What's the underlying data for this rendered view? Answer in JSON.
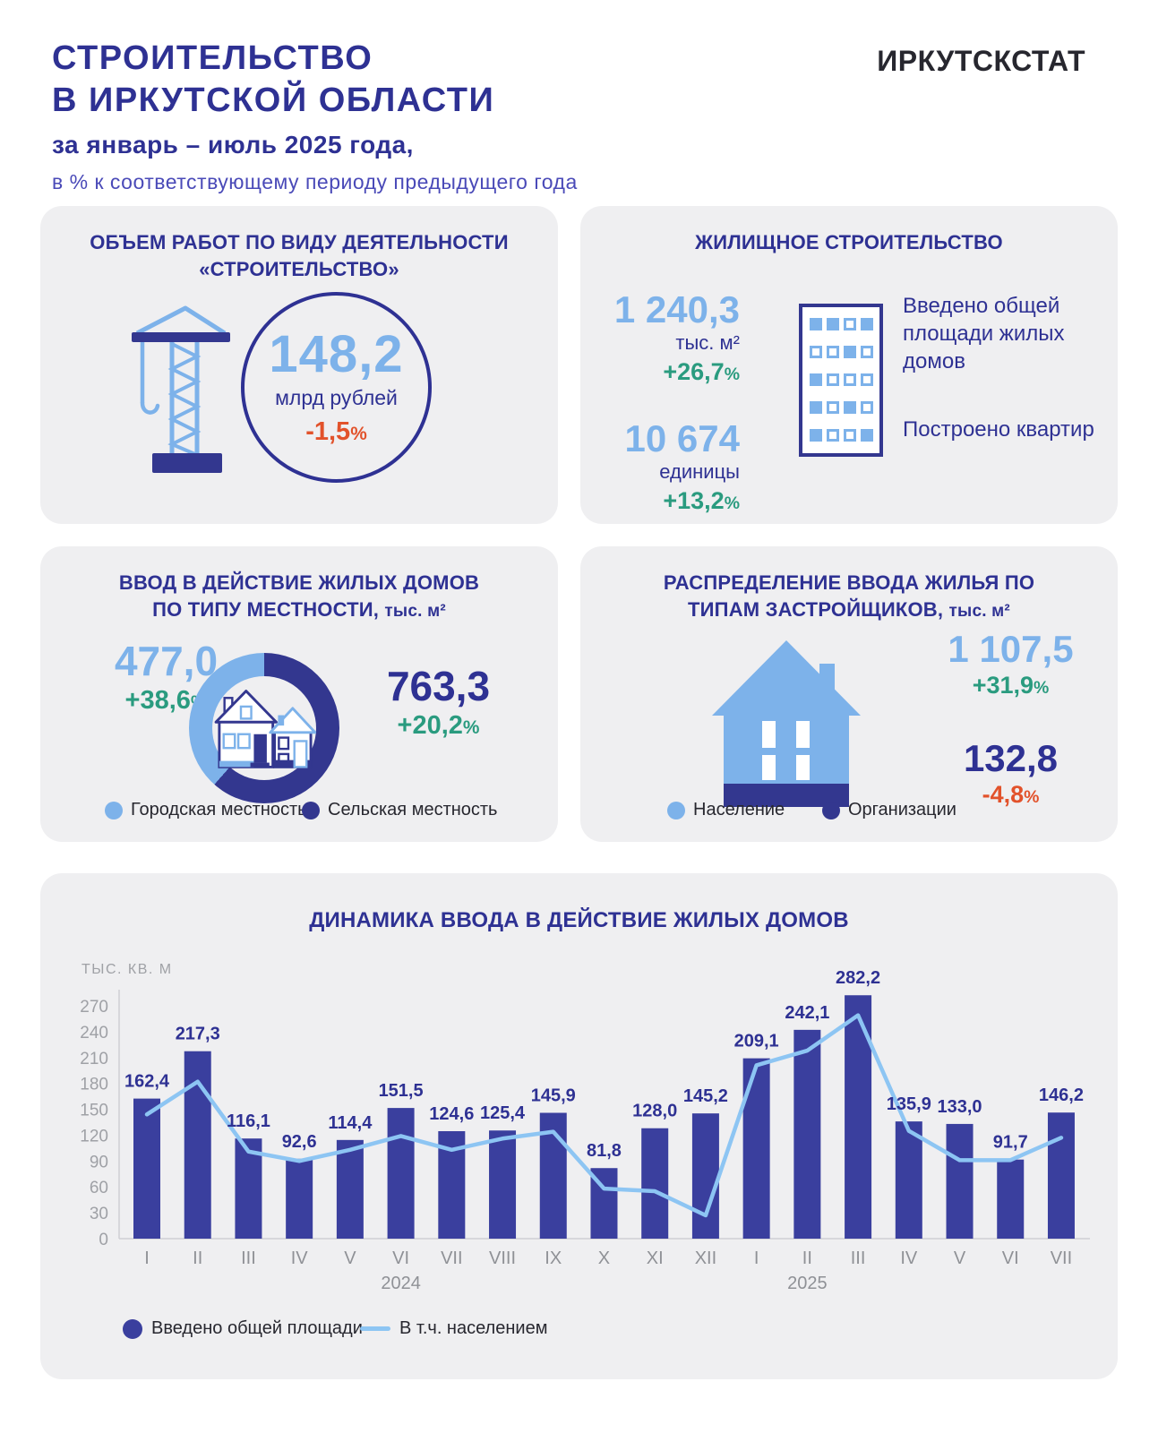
{
  "colors": {
    "navy": "#2e3193",
    "indigo": "#3a3f9e",
    "donut_dark": "#33378f",
    "light_blue": "#7db2ea",
    "line_blue": "#8dc5f3",
    "green": "#2a9b7f",
    "orange": "#e2522b",
    "violet": "#4a4ab8",
    "panel_bg": "#efeff1",
    "axis_gray": "#9fa1a6",
    "label_gray": "#8f9196",
    "ink": "#27272f",
    "black": "#141414"
  },
  "header": {
    "title_line1": "СТРОИТЕЛЬСТВО",
    "title_line2": "В ИРКУТСКОЙ ОБЛАСТИ",
    "period": "за январь – июль 2025 года,",
    "subtitle": "в % к соответствующему периоду предыдущего года",
    "logo": "ИРКУТСКСТАТ"
  },
  "panels": {
    "volume": {
      "title_line1": "ОБЪЕМ РАБОТ ПО ВИДУ ДЕЯТЕЛЬНОСТИ",
      "title_line2": "«СТРОИТЕЛЬСТВО»",
      "value": "148,2",
      "unit": "млрд рублей",
      "change": "-1,5%"
    },
    "housing": {
      "title": "ЖИЛИЩНОЕ СТРОИТЕЛЬСТВО",
      "area": {
        "value": "1 240,3",
        "unit": "тыс. м²",
        "change": "+26,7%",
        "label": "Введено общей площади жилых домов"
      },
      "apartments": {
        "value": "10 674",
        "unit": "единицы",
        "change": "+13,2%",
        "label": "Построено квартир"
      },
      "building_windows": [
        [
          "f",
          "f",
          "o",
          "f"
        ],
        [
          "o",
          "o",
          "f",
          "o"
        ],
        [
          "f",
          "o",
          "o",
          "o"
        ],
        [
          "f",
          "o",
          "f",
          "o"
        ],
        [
          "f",
          "o",
          "o",
          "f"
        ]
      ]
    },
    "locality": {
      "title_line1": "ВВОД В ДЕЙСТВИЕ ЖИЛЫХ ДОМОВ",
      "title_line2": "ПО ТИПУ МЕСТНОСТИ,",
      "title_unit": "тыс. м²",
      "urban": {
        "value": "477,0",
        "change": "+38,6%",
        "label": "Городская местность"
      },
      "rural": {
        "value": "763,3",
        "change": "+20,2%",
        "label": "Сельская местность"
      }
    },
    "developers": {
      "title_line1": "РАСПРЕДЕЛЕНИЕ ВВОДА ЖИЛЬЯ ПО",
      "title_line2": "ТИПАМ ЗАСТРОЙЩИКОВ,",
      "title_unit": "тыс. м²",
      "population": {
        "value": "1 107,5",
        "change": "+31,9%",
        "label": "Население"
      },
      "organizations": {
        "value": "132,8",
        "change": "-4,8%",
        "label": "Организации"
      }
    }
  },
  "chart_data": {
    "type": "bar+line",
    "title": "ДИНАМИКА ВВОДА В ДЕЙСТВИЕ ЖИЛЫХ ДОМОВ",
    "ylabel": "ТЫС. КВ. М",
    "yticks": [
      0,
      30,
      60,
      90,
      120,
      150,
      180,
      210,
      240,
      270
    ],
    "ylim": [
      0,
      300
    ],
    "grid": false,
    "legend_position": "bottom-left",
    "categories": [
      "I",
      "II",
      "III",
      "IV",
      "V",
      "VI",
      "VII",
      "VIII",
      "IX",
      "X",
      "XI",
      "XII",
      "I",
      "II",
      "III",
      "IV",
      "V",
      "VI",
      "VII"
    ],
    "year_labels": [
      {
        "text": "2024",
        "index": 5
      },
      {
        "text": "2025",
        "index": 13
      }
    ],
    "series": [
      {
        "name": "Введено общей площади",
        "type": "bar",
        "values": [
          162.4,
          217.3,
          116.1,
          92.6,
          114.4,
          151.5,
          124.6,
          125.4,
          145.9,
          81.8,
          128.0,
          145.2,
          209.1,
          242.1,
          282.2,
          135.9,
          133.0,
          91.7,
          146.2
        ],
        "labels": [
          "162,4",
          "217,3",
          "116,1",
          "92,6",
          "114,4",
          "151,5",
          "124,6",
          "125,4",
          "145,9",
          "81,8",
          "128,0",
          "145,2",
          "209,1",
          "242,1",
          "282,2",
          "135,9",
          "133,0",
          "91,7",
          "146,2"
        ]
      },
      {
        "name": "В т.ч. населением",
        "type": "line",
        "values": [
          144,
          182,
          101,
          90,
          103,
          119,
          103,
          116,
          124,
          58,
          55,
          27,
          201,
          218,
          259,
          125,
          91,
          91,
          117
        ]
      }
    ]
  }
}
